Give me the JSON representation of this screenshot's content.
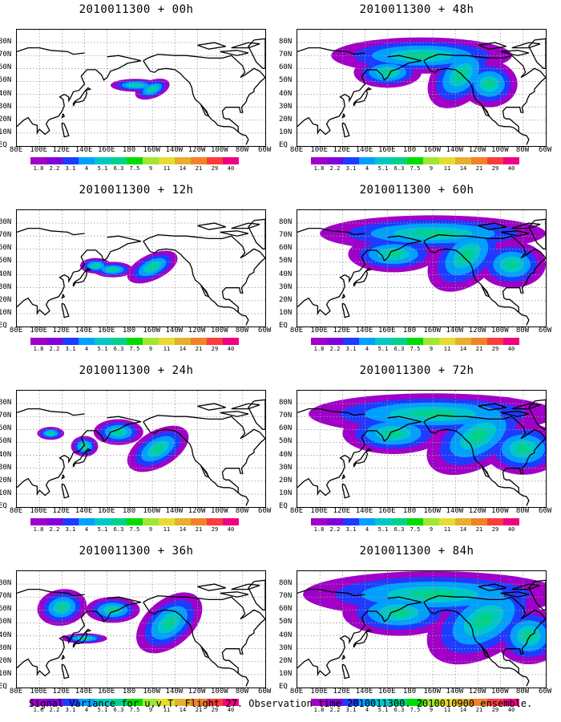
{
  "panels": [
    {
      "title": "2010011300 + 00h",
      "level": 0
    },
    {
      "title": "2010011300 + 48h",
      "level": 4
    },
    {
      "title": "2010011300 + 12h",
      "level": 1
    },
    {
      "title": "2010011300 + 60h",
      "level": 5
    },
    {
      "title": "2010011300 + 24h",
      "level": 2
    },
    {
      "title": "2010011300 + 72h",
      "level": 6
    },
    {
      "title": "2010011300 + 36h",
      "level": 3
    },
    {
      "title": "2010011300 + 84h",
      "level": 7
    }
  ],
  "lat_labels": [
    "80N",
    "70N",
    "60N",
    "50N",
    "40N",
    "30N",
    "20N",
    "10N",
    "EQ"
  ],
  "lon_labels": [
    "80E",
    "100E",
    "120E",
    "140E",
    "160E",
    "180",
    "160W",
    "140W",
    "120W",
    "100W",
    "80W",
    "60W"
  ],
  "colorbar": {
    "labels": [
      "1.8",
      "2.2",
      "3.1",
      "4",
      "5.1",
      "6.3",
      "7.5",
      "9",
      "11",
      "14",
      "21",
      "29",
      "40"
    ],
    "first_label_variant": "1.6",
    "colors": [
      "#a000c8",
      "#8200dc",
      "#1e3cff",
      "#00a0ff",
      "#00c8c8",
      "#00d28c",
      "#00dc00",
      "#a0e632",
      "#e6dc32",
      "#e6af2d",
      "#f08228",
      "#fa3c3c",
      "#f00082"
    ]
  },
  "footer": "Signal Variance for u,v,T. Flight 27. Observation time 2010011300. 2010010900 ensemble."
}
